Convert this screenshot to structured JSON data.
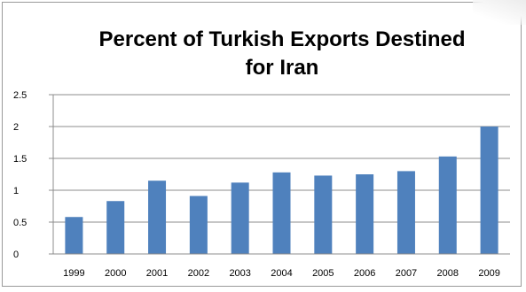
{
  "chart_data": {
    "type": "bar",
    "title": "Percent of Turkish Exports Destined for Iran",
    "title_lines": [
      "Percent of Turkish Exports Destined",
      "for Iran"
    ],
    "categories": [
      "1999",
      "2000",
      "2001",
      "2002",
      "2003",
      "2004",
      "2005",
      "2006",
      "2007",
      "2008",
      "2009"
    ],
    "values": [
      0.58,
      0.83,
      1.15,
      0.91,
      1.12,
      1.28,
      1.23,
      1.25,
      1.3,
      1.53,
      2.0
    ],
    "yticks": [
      "0",
      "0.5",
      "1",
      "1.5",
      "2",
      "2.5"
    ],
    "ylim": [
      0,
      2.5
    ],
    "xlabel": "",
    "ylabel": "",
    "grid": true,
    "legend": "none",
    "bar_color": "#4f81bd"
  }
}
